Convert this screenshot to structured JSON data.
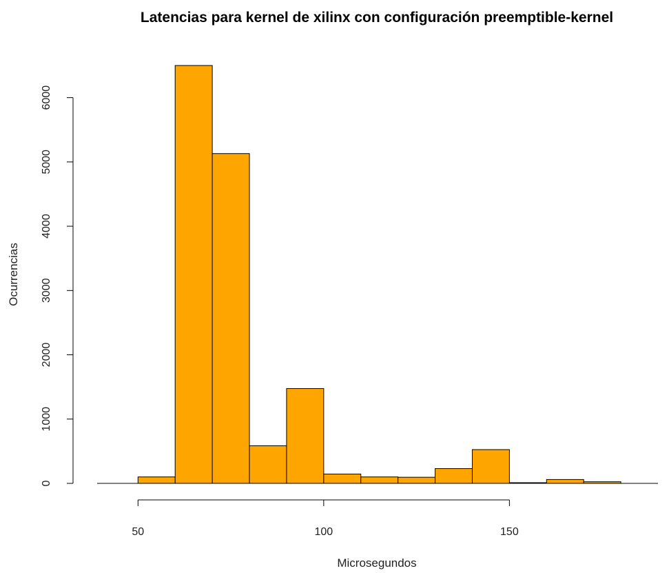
{
  "chart_data": {
    "type": "bar",
    "title": "Latencias para kernel de xilinx con configuración preemptible-kernel",
    "xlabel": "Microsegundos",
    "ylabel": "Ocurrencias",
    "bar_color": "#FFA500",
    "bins": [
      {
        "x0": 50,
        "x1": 60,
        "count": 100
      },
      {
        "x0": 60,
        "x1": 70,
        "count": 6500
      },
      {
        "x0": 70,
        "x1": 80,
        "count": 5130
      },
      {
        "x0": 80,
        "x1": 90,
        "count": 585
      },
      {
        "x0": 90,
        "x1": 100,
        "count": 1475
      },
      {
        "x0": 100,
        "x1": 110,
        "count": 145
      },
      {
        "x0": 110,
        "x1": 120,
        "count": 100
      },
      {
        "x0": 120,
        "x1": 130,
        "count": 95
      },
      {
        "x0": 130,
        "x1": 140,
        "count": 230
      },
      {
        "x0": 140,
        "x1": 150,
        "count": 525
      },
      {
        "x0": 150,
        "x1": 160,
        "count": 10
      },
      {
        "x0": 160,
        "x1": 170,
        "count": 60
      },
      {
        "x0": 170,
        "x1": 180,
        "count": 25
      }
    ],
    "xlim": [
      39,
      190
    ],
    "ylim": [
      0,
      6500
    ],
    "x_ticks": [
      50,
      100,
      150
    ],
    "x_tick_labels": [
      "50",
      "100",
      "150"
    ],
    "y_ticks": [
      0,
      1000,
      2000,
      3000,
      4000,
      5000,
      6000
    ],
    "y_tick_labels": [
      "0",
      "1000",
      "2000",
      "3000",
      "4000",
      "5000",
      "6000"
    ],
    "grid": false,
    "legend": "none"
  }
}
